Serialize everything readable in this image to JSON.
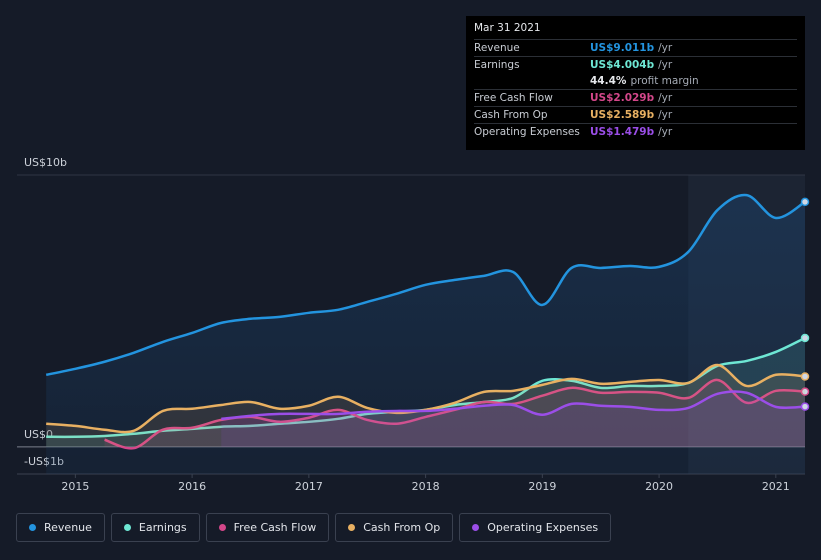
{
  "chart_data": {
    "type": "line",
    "x": [
      2014.75,
      2015.0,
      2015.25,
      2015.5,
      2015.75,
      2016.0,
      2016.25,
      2016.5,
      2016.75,
      2017.0,
      2017.25,
      2017.5,
      2017.75,
      2018.0,
      2018.25,
      2018.5,
      2018.75,
      2019.0,
      2019.25,
      2019.5,
      2019.75,
      2020.0,
      2020.25,
      2020.5,
      2020.75,
      2021.0,
      2021.25
    ],
    "xlim": [
      2014.5,
      2021.25
    ],
    "xticks": [
      2015,
      2016,
      2017,
      2018,
      2019,
      2020,
      2021
    ],
    "ylim": [
      -1,
      10
    ],
    "yticks": [
      {
        "value": 10,
        "label": "US$10b"
      },
      {
        "value": 0,
        "label": "US$0"
      },
      {
        "value": -1,
        "label": "-US$1b"
      }
    ],
    "series": [
      {
        "name": "Revenue",
        "color": "#2394df",
        "values": [
          2.65,
          2.87,
          3.13,
          3.46,
          3.86,
          4.19,
          4.56,
          4.71,
          4.78,
          4.93,
          5.04,
          5.33,
          5.63,
          5.96,
          6.14,
          6.29,
          6.43,
          5.22,
          6.58,
          6.58,
          6.65,
          6.62,
          7.17,
          8.71,
          9.26,
          8.42,
          9.011
        ]
      },
      {
        "name": "Earnings",
        "color": "#6ee7d4",
        "values": [
          0.37,
          0.37,
          0.4,
          0.48,
          0.59,
          0.66,
          0.74,
          0.77,
          0.85,
          0.92,
          1.03,
          1.21,
          1.29,
          1.36,
          1.54,
          1.65,
          1.8,
          2.43,
          2.43,
          2.17,
          2.24,
          2.24,
          2.35,
          2.98,
          3.16,
          3.49,
          4.004
        ]
      },
      {
        "name": "Free Cash Flow",
        "color": "#d4478a",
        "values": [
          null,
          null,
          0.26,
          -0.05,
          0.63,
          0.7,
          0.99,
          1.1,
          0.92,
          1.07,
          1.36,
          0.99,
          0.85,
          1.1,
          1.36,
          1.65,
          1.58,
          1.88,
          2.17,
          1.99,
          2.02,
          1.99,
          1.8,
          2.46,
          1.62,
          2.06,
          2.029
        ]
      },
      {
        "name": "Cash From Op",
        "color": "#e8b062",
        "values": [
          0.85,
          0.77,
          0.63,
          0.59,
          1.32,
          1.4,
          1.54,
          1.65,
          1.4,
          1.51,
          1.84,
          1.43,
          1.25,
          1.36,
          1.62,
          2.02,
          2.06,
          2.28,
          2.5,
          2.32,
          2.39,
          2.46,
          2.35,
          3.01,
          2.24,
          2.65,
          2.589
        ]
      },
      {
        "name": "Operating Expenses",
        "color": "#9b4ee8",
        "values": [
          null,
          null,
          null,
          null,
          null,
          null,
          1.03,
          1.14,
          1.21,
          1.21,
          1.21,
          1.29,
          1.32,
          1.32,
          1.4,
          1.51,
          1.54,
          1.18,
          1.58,
          1.51,
          1.47,
          1.36,
          1.43,
          1.95,
          1.99,
          1.47,
          1.479
        ]
      }
    ],
    "tooltip": {
      "title": "Mar 31 2021",
      "rows": [
        {
          "label": "Revenue",
          "value": "US$9.011b",
          "unit": "/yr",
          "color": "#2394df"
        },
        {
          "label": "Earnings",
          "value": "US$4.004b",
          "unit": "/yr",
          "color": "#6ee7d4"
        },
        {
          "label": "Free Cash Flow",
          "value": "US$2.029b",
          "unit": "/yr",
          "color": "#d4478a"
        },
        {
          "label": "Cash From Op",
          "value": "US$2.589b",
          "unit": "/yr",
          "color": "#e8b062"
        },
        {
          "label": "Operating Expenses",
          "value": "US$1.479b",
          "unit": "/yr",
          "color": "#9b4ee8"
        }
      ],
      "margin": "44.4%",
      "margin_label": "profit margin"
    }
  }
}
